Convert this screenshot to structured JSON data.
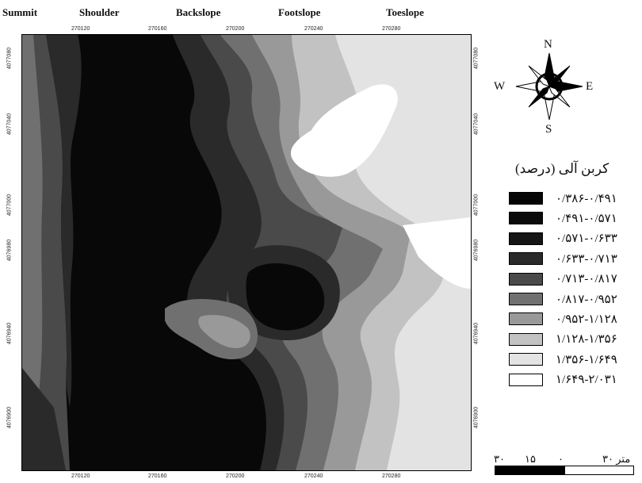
{
  "slope_positions": [
    "Summit",
    "Shoulder",
    "Backslope",
    "Footslope",
    "Toeslope"
  ],
  "x_ticks": [
    "270120",
    "270160",
    "270200",
    "270240",
    "270280"
  ],
  "y_ticks": [
    "4076900",
    "4076940",
    "4076980",
    "4077000",
    "4077040",
    "4077080"
  ],
  "compass": {
    "n": "N",
    "s": "S",
    "e": "E",
    "w": "W"
  },
  "legend": {
    "title": "کربن آلی (درصد)",
    "items": [
      {
        "label": "۰/۳۸۶-۰/۴۹۱",
        "color": "#050505"
      },
      {
        "label": "۰/۴۹۱-۰/۵۷۱",
        "color": "#0b0b0b"
      },
      {
        "label": "۰/۵۷۱-۰/۶۳۳",
        "color": "#151515"
      },
      {
        "label": "۰/۶۳۳-۰/۷۱۳",
        "color": "#2a2a2a"
      },
      {
        "label": "۰/۷۱۳-۰/۸۱۷",
        "color": "#4a4a4a"
      },
      {
        "label": "۰/۸۱۷-۰/۹۵۲",
        "color": "#707070"
      },
      {
        "label": "۰/۹۵۲-۱/۱۲۸",
        "color": "#999999"
      },
      {
        "label": "۱/۱۲۸-۱/۳۵۶",
        "color": "#c2c2c2"
      },
      {
        "label": "۱/۳۵۶-۱/۶۴۹",
        "color": "#e3e3e3"
      },
      {
        "label": "۱/۶۴۹-۲/۰۳۱",
        "color": "#ffffff"
      }
    ]
  },
  "scale": {
    "unit_label": "متر ۳۰",
    "ticks": [
      "۳۰",
      "۱۵",
      "۰"
    ]
  }
}
